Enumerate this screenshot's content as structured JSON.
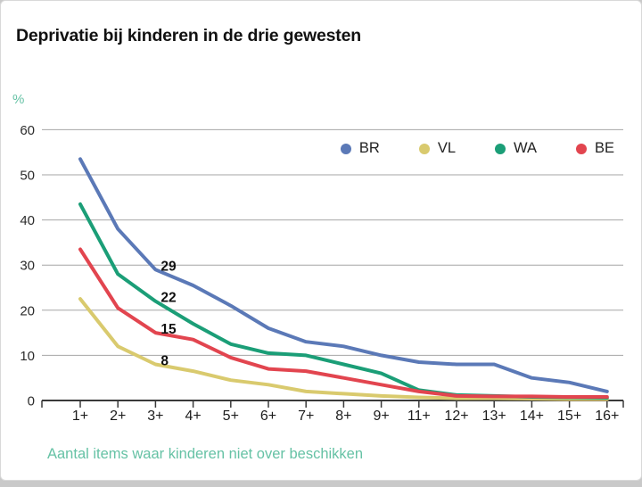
{
  "page": {
    "title": "Deprivatie bij kinderen in de drie gewesten",
    "y_unit_label": "%",
    "x_axis_caption": "Aantal items waar kinderen niet over beschikken"
  },
  "colors": {
    "accent_teal": "#66c2a5",
    "grid_line": "#a6a6a6",
    "axis_line": "#3a3a3a",
    "tick_label": "#2b2b2b",
    "annotation": "#111111"
  },
  "chart_data": {
    "type": "line",
    "title": "Deprivatie bij kinderen in de drie gewesten",
    "xlabel": "Aantal items waar kinderen niet over beschikken",
    "ylabel": "%",
    "ylim": [
      0,
      60
    ],
    "yticks": [
      0,
      10,
      20,
      30,
      40,
      50,
      60
    ],
    "grid": true,
    "legend_position": "top-right",
    "categories": [
      "1+",
      "2+",
      "3+",
      "4+",
      "5+",
      "6+",
      "7+",
      "8+",
      "9+",
      "11+",
      "12+",
      "13+",
      "14+",
      "15+",
      "16+"
    ],
    "series": [
      {
        "name": "BR",
        "color": "#5b79b7",
        "values": [
          53.5,
          38,
          29,
          25.5,
          21,
          16,
          13,
          12,
          10,
          8.5,
          8,
          8,
          5,
          4,
          2
        ]
      },
      {
        "name": "VL",
        "color": "#d9ca6e",
        "values": [
          22.5,
          12,
          8,
          6.5,
          4.5,
          3.5,
          2,
          1.5,
          1,
          0.7,
          0.5,
          0.5,
          0.4,
          0.3,
          0.3
        ]
      },
      {
        "name": "WA",
        "color": "#1b9e77",
        "values": [
          43.5,
          28,
          22,
          17,
          12.5,
          10.5,
          10,
          8,
          6,
          2.3,
          1.2,
          1,
          0.8,
          0.7,
          0.6
        ]
      },
      {
        "name": "BE",
        "color": "#e2454f",
        "values": [
          33.5,
          20.5,
          15,
          13.5,
          9.5,
          7,
          6.5,
          5,
          3.5,
          2,
          1,
          0.9,
          0.9,
          0.8,
          0.8
        ]
      }
    ],
    "annotations": [
      {
        "series": "BR",
        "category": "3+",
        "label": "29"
      },
      {
        "series": "WA",
        "category": "3+",
        "label": "22"
      },
      {
        "series": "BE",
        "category": "3+",
        "label": "15"
      },
      {
        "series": "VL",
        "category": "3+",
        "label": "8"
      }
    ]
  }
}
